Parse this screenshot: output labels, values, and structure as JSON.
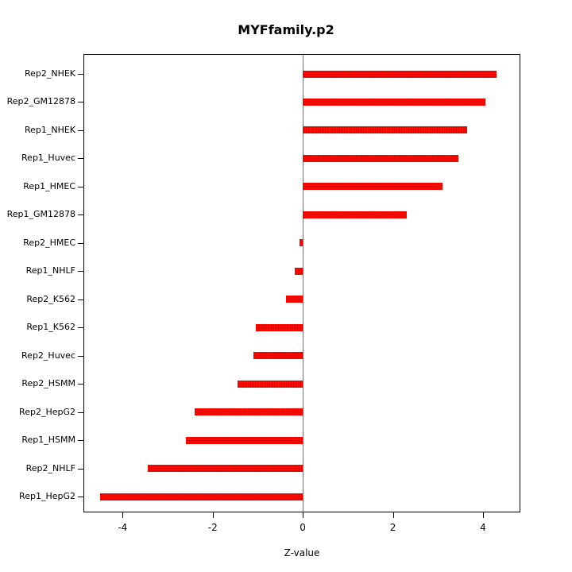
{
  "chart_data": {
    "type": "bar",
    "orientation": "horizontal",
    "title": "MYFfamily.p2",
    "xlabel": "Z-value",
    "ylabel": "",
    "categories": [
      "Rep2_NHEK",
      "Rep2_GM12878",
      "Rep1_NHEK",
      "Rep1_Huvec",
      "Rep1_HMEC",
      "Rep1_GM12878",
      "Rep2_HMEC",
      "Rep1_NHLF",
      "Rep2_K562",
      "Rep1_K562",
      "Rep2_Huvec",
      "Rep2_HSMM",
      "Rep2_HepG2",
      "Rep1_HSMM",
      "Rep2_NHLF",
      "Rep1_HepG2"
    ],
    "values": [
      4.3,
      4.05,
      3.65,
      3.45,
      3.1,
      2.3,
      -0.07,
      -0.18,
      -0.38,
      -1.05,
      -1.1,
      -1.45,
      -2.4,
      -2.6,
      -3.45,
      -4.5
    ],
    "xlim": [
      -4.87,
      4.83
    ],
    "xticks": [
      -4,
      -2,
      0,
      2,
      4
    ],
    "xtick_labels": [
      "-4",
      "-2",
      "0",
      "2",
      "4"
    ],
    "bar_color": "#ff0a00",
    "zero_line_color": "#00c000",
    "grid": false,
    "legend": false
  }
}
